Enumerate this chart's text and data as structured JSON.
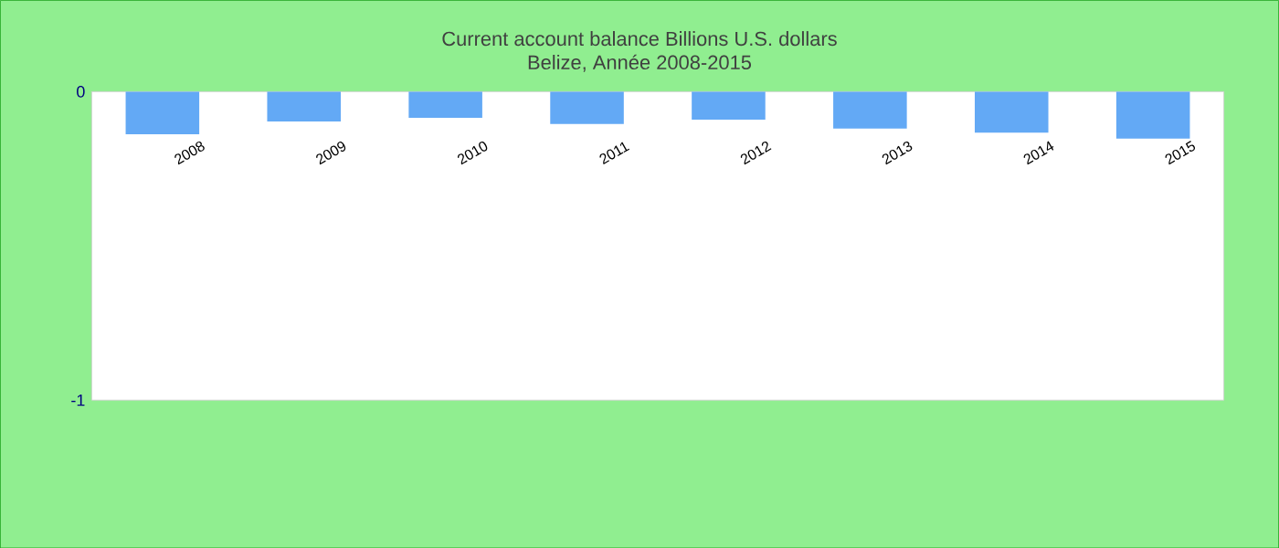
{
  "chart_data": {
    "type": "bar",
    "title": "Current account balance Billions U.S. dollars",
    "subtitle": "Belize, Année 2008-2015",
    "categories": [
      "2008",
      "2009",
      "2010",
      "2011",
      "2012",
      "2013",
      "2014",
      "2015"
    ],
    "values": [
      -0.138,
      -0.097,
      -0.085,
      -0.105,
      -0.091,
      -0.12,
      -0.133,
      -0.152
    ],
    "color": "#63a9f5",
    "ylim": [
      -1,
      0
    ],
    "yticks": [
      -1,
      0
    ],
    "grid": false
  }
}
